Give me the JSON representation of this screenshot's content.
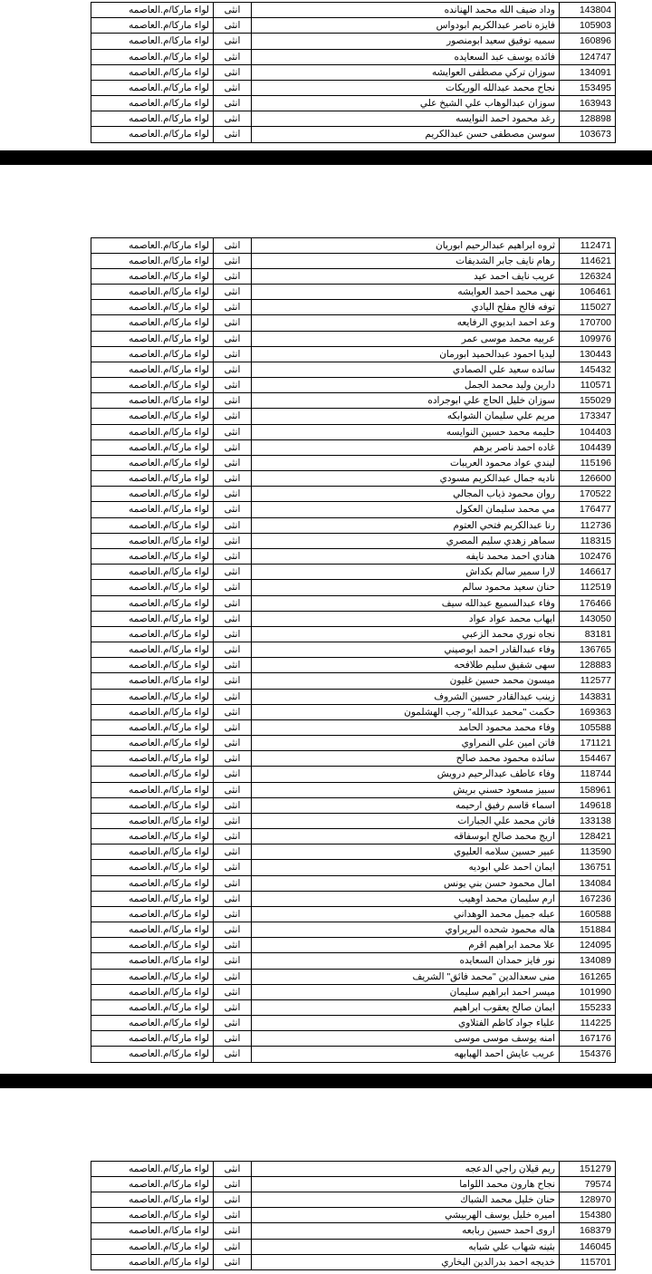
{
  "gender_label": "انثى",
  "location_label": "لواء ماركا/م.العاصمه",
  "pages": [
    {
      "rows": [
        {
          "id": "143804",
          "name": "وداد ضيف الله محمد الهنانده"
        },
        {
          "id": "105903",
          "name": "فايزه ناصر عبدالكريم ابودواس"
        },
        {
          "id": "160896",
          "name": "سميه توفيق سعيد ابومنصور"
        },
        {
          "id": "124747",
          "name": "فائده يوسف عبد السعايده"
        },
        {
          "id": "134091",
          "name": "سوزان تركي مصطفى العوايشه"
        },
        {
          "id": "153495",
          "name": "نجاح محمد عبدالله الوريكات"
        },
        {
          "id": "163943",
          "name": "سوزان عبدالوهاب علي الشيخ علي"
        },
        {
          "id": "128898",
          "name": "رغد محمود احمد النوايسه"
        },
        {
          "id": "103673",
          "name": "سوسن مصطفى حسن عبدالكريم"
        }
      ]
    },
    {
      "rows": [
        {
          "id": "112471",
          "name": "ثروه ابراهيم عبدالرحيم ابوريان"
        },
        {
          "id": "114621",
          "name": "رهام نايف جابر الشديفات"
        },
        {
          "id": "126324",
          "name": "عريب نايف احمد عيد"
        },
        {
          "id": "106461",
          "name": "نهى محمد احمد العوايشه"
        },
        {
          "id": "115027",
          "name": "توفه فالح مفلح اليادي"
        },
        {
          "id": "170700",
          "name": "وعد احمد ابديوي الرفايعه"
        },
        {
          "id": "109976",
          "name": "عربيه محمد موسى عمر"
        },
        {
          "id": "130443",
          "name": "ليديا احمود عبدالحميد ابورمان"
        },
        {
          "id": "145432",
          "name": "سائده سعيد علي الصمادي"
        },
        {
          "id": "110571",
          "name": "دارين وليد محمد الجمل"
        },
        {
          "id": "155029",
          "name": "سوزان خليل الحاج علي ابوجراده"
        },
        {
          "id": "173347",
          "name": "مريم علي سليمان الشوابكه"
        },
        {
          "id": "104403",
          "name": "حليمه محمد حسين النوايسه"
        },
        {
          "id": "104439",
          "name": "غاده احمد ناصر برهم"
        },
        {
          "id": "115196",
          "name": "ليندي عواد محمود العريبات"
        },
        {
          "id": "126600",
          "name": "ناديه جمال عبدالكريم مسودي"
        },
        {
          "id": "170522",
          "name": "روان محمود ذياب المجالي"
        },
        {
          "id": "176477",
          "name": "مي محمد سليمان العكول"
        },
        {
          "id": "112736",
          "name": "رنا عبدالكريم فتحي العتوم"
        },
        {
          "id": "118315",
          "name": "سماهر زهدي سليم المصري"
        },
        {
          "id": "102476",
          "name": "هنادي احمد محمد نايفه"
        },
        {
          "id": "146617",
          "name": "لارا سمير سالم بكداش"
        },
        {
          "id": "112519",
          "name": "حنان سعيد محمود سالم"
        },
        {
          "id": "176466",
          "name": "وفاء عبدالسميع عبدالله سيف"
        },
        {
          "id": "143050",
          "name": "ايهاب محمد عواد عواد"
        },
        {
          "id": "83181",
          "name": "نجاه نوري محمد الزعبي"
        },
        {
          "id": "136765",
          "name": "وفاء عبدالقادر احمد ابوصيني"
        },
        {
          "id": "128883",
          "name": "سهى شفيق سليم طلافحه"
        },
        {
          "id": "112577",
          "name": "ميسون محمد حسين غليون"
        },
        {
          "id": "143831",
          "name": "زينب عبدالقادر حسين الشروف"
        },
        {
          "id": "169363",
          "name": "حكمت \"محمد عبدالله\" رجب الهشلمون"
        },
        {
          "id": "105588",
          "name": "وفاء محمد محمود الحامد"
        },
        {
          "id": "171121",
          "name": "فاتن امين علي النمراوي"
        },
        {
          "id": "154467",
          "name": "سائده محمود محمد صالح"
        },
        {
          "id": "118744",
          "name": "وفاء عاطف عبدالرحيم درويش"
        },
        {
          "id": "158961",
          "name": "سبيز مسعود حسني بريش"
        },
        {
          "id": "149618",
          "name": "اسماء قاسم رفيق ارحيمه"
        },
        {
          "id": "133138",
          "name": "فاتن محمد علي الجبارات"
        },
        {
          "id": "128421",
          "name": "اريج محمد صالح ابوسفاقه"
        },
        {
          "id": "113590",
          "name": "عبير حسين سلامه العليوي"
        },
        {
          "id": "136751",
          "name": "ايمان احمد علي ابوديه"
        },
        {
          "id": "134084",
          "name": "امال محمود حسن بني يونس"
        },
        {
          "id": "167236",
          "name": "ارم سليمان محمد اوهيب"
        },
        {
          "id": "160588",
          "name": "عبله جميل محمد الوهداني"
        },
        {
          "id": "151884",
          "name": "هاله محمود شحده البريراوي"
        },
        {
          "id": "124095",
          "name": "علا محمد ابراهيم اقرم"
        },
        {
          "id": "134089",
          "name": "نور فايز حمدان السعايده"
        },
        {
          "id": "161265",
          "name": "منى سعدالدين \"محمد فائق\" الشريف"
        },
        {
          "id": "101990",
          "name": "ميسر احمد ابراهيم سليمان"
        },
        {
          "id": "155233",
          "name": "ايمان صالح يعقوب ابراهيم"
        },
        {
          "id": "114225",
          "name": "علياء جواد كاظم الفتلاوي"
        },
        {
          "id": "167176",
          "name": "امنه يوسف موسى موسى"
        },
        {
          "id": "154376",
          "name": "عريب عايش احمد الهبابهه"
        }
      ]
    },
    {
      "rows": [
        {
          "id": "151279",
          "name": "ريم قيلان راجي الدعجه"
        },
        {
          "id": "79574",
          "name": "نجاح هارون محمد اللواما"
        },
        {
          "id": "128970",
          "name": "حنان خليل محمد الشباك"
        },
        {
          "id": "154380",
          "name": "اميره خليل يوسف الهربيشي"
        },
        {
          "id": "168379",
          "name": "اروى احمد حسين ربابعه"
        },
        {
          "id": "146045",
          "name": "بثينه شهاب علي شبابه"
        },
        {
          "id": "115701",
          "name": "خديجه احمد بدرالدين البخاري"
        }
      ]
    }
  ]
}
